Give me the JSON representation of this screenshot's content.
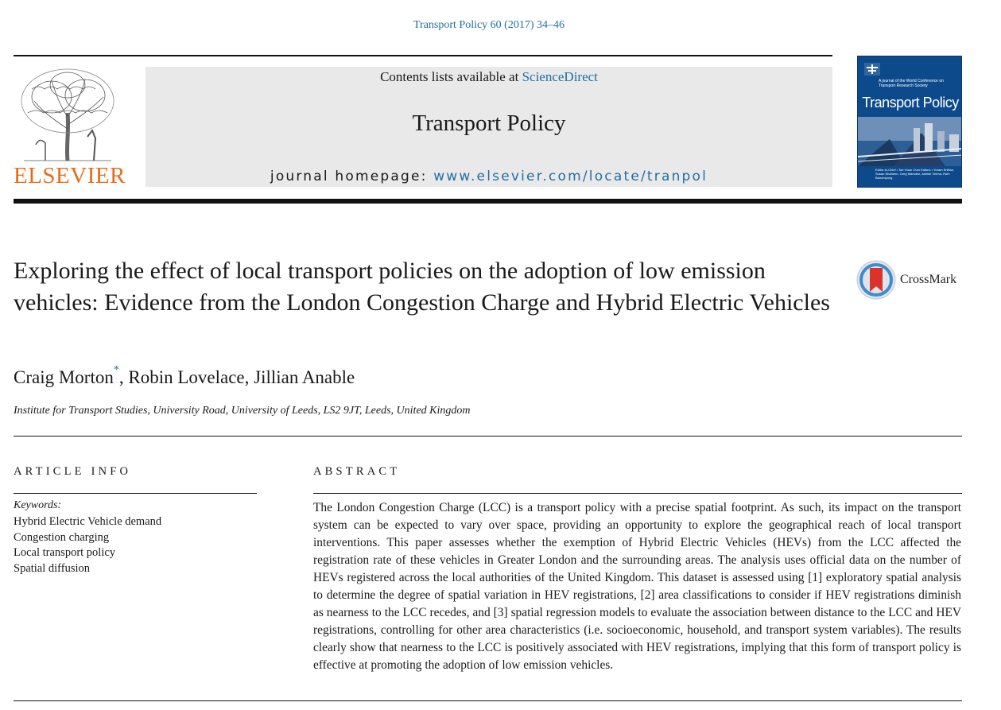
{
  "citation": "Transport Policy 60 (2017) 34–46",
  "publisher": {
    "wordmark": "ELSEVIER"
  },
  "banner": {
    "contents_prefix": "Contents lists available at ",
    "contents_link": "ScienceDirect",
    "journal_name": "Transport Policy",
    "homepage_prefix": "journal homepage: ",
    "homepage_url": "www.elsevier.com/locate/tranpol"
  },
  "cover": {
    "tagline": "A journal of the World Conference on Transport Research Society",
    "title": "Transport Policy",
    "editors": "Editor-in-Chief • Tae Hoon Oum   Editors • Yoram Shiftan, Susan Shaheen, Greg Marsden, Ashish Verma, Ruth Banomyong",
    "color": "#0d4a8c"
  },
  "article": {
    "title": "Exploring the effect of local transport policies on the adoption of low emission vehicles: Evidence from the London Congestion Charge and Hybrid Electric Vehicles",
    "crossmark_label": "CrossMark",
    "authors": [
      {
        "name": "Craig Morton",
        "mark": "*"
      },
      {
        "name": "Robin Lovelace",
        "mark": ""
      },
      {
        "name": "Jillian Anable",
        "mark": ""
      }
    ],
    "affiliation": "Institute for Transport Studies, University Road, University of Leeds, LS2 9JT, Leeds, United Kingdom"
  },
  "article_info": {
    "heading": "ARTICLE INFO",
    "keywords_label": "Keywords:",
    "keywords": [
      "Hybrid Electric Vehicle demand",
      "Congestion charging",
      "Local transport policy",
      "Spatial diffusion"
    ]
  },
  "abstract": {
    "heading": "ABSTRACT",
    "text": "The London Congestion Charge (LCC) is a transport policy with a precise spatial footprint. As such, its impact on the transport system can be expected to vary over space, providing an opportunity to explore the geographical reach of local transport interventions. This paper assesses whether the exemption of Hybrid Electric Vehicles (HEVs) from the LCC affected the registration rate of these vehicles in Greater London and the surrounding areas. The analysis uses official data on the number of HEVs registered across the local authorities of the United Kingdom. This dataset is assessed using [1] exploratory spatial analysis to determine the degree of spatial variation in HEV registrations, [2] area classifications to consider if HEV registrations diminish as nearness to the LCC recedes, and [3] spatial regression models to evaluate the association between distance to the LCC and HEV registrations, controlling for other area characteristics (i.e. socioeconomic, household, and transport system variables). The results clearly show that nearness to the LCC is positively associated with HEV registrations, implying that this form of transport policy is effective at promoting the adoption of low emission vehicles."
  },
  "colors": {
    "link": "#1f6fa3",
    "elsevier_orange": "#e86c1a",
    "banner_gray": "#e9e9e9",
    "crossmark_red": "#d9332b"
  }
}
